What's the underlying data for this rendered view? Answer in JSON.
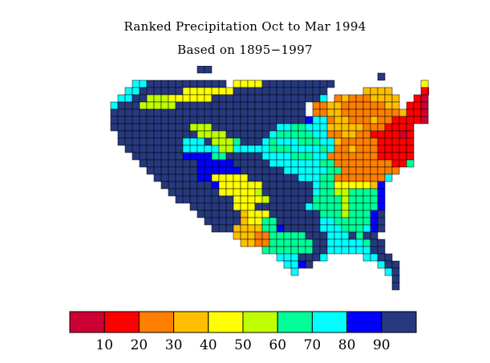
{
  "title": "Ranked Precipitation Oct to Mar 1994",
  "subtitle": "Based on 1895−1997",
  "legend": {
    "colors": [
      "#cc0033",
      "#ff0000",
      "#ff7f00",
      "#ffbf00",
      "#ffff00",
      "#bfff00",
      "#00ff99",
      "#00ffff",
      "#0000ff",
      "#26397f"
    ],
    "labels": [
      "10",
      "20",
      "30",
      "40",
      "50",
      "60",
      "70",
      "80",
      "90"
    ]
  },
  "map": {
    "rank_colors": [
      "#cc0033",
      "#ff0000",
      "#ff7f00",
      "#ffbf00",
      "#ffff00",
      "#bfff00",
      "#00ff99",
      "#00ffff",
      "#0000ff",
      "#26397f"
    ],
    "cells": [
      "...................99............................",
      "............................................9.....",
      "..........7799999999999.44449999999999............4",
      ".........7799999944444449999999999999.....3333....10",
      "........77995554444449999999999999997.232223333..10",
      ".......799955555999999999999999999.223322222233.110",
      ".......999999999999999999999999999.2233222222223110",
      ".......99999999999999999999999999987723322232211110",
      ".......999999999995559999999997766777333332221111..",
      "........99999999999555599999976666677223322111101..",
      "........99999999977795556999767776667732222211111..",
      ".........9999999977777557777766677776722322211111..",
      "..........999999988886699999777766677222222211111..",
      "...........99999999888889999977777776622222222116..",
      "............99999998888889999997777776622222222....",
      ".............999999884444499999997776622222227.....",
      "..............9999999844444499999997664444438......",
      "...............999999944444599999997665566668......",
      "................99999999444459999996666566668......",
      "..................999999444999999976666566668......",
      "...................99999934449999999666566689......",
      "....................9999934466999999776666689......",
      ".....................999333366899999777666789......",
      "........................33322666669997779699.......",
      ".........................33226666669977777699......",
      "............................66666669977777799......",
      "..............................7779997.....7799.....",
      "...............................7789.........799....",
      "................................7............79....",
      "..............................................9....",
      "..............................................9...."
    ]
  }
}
